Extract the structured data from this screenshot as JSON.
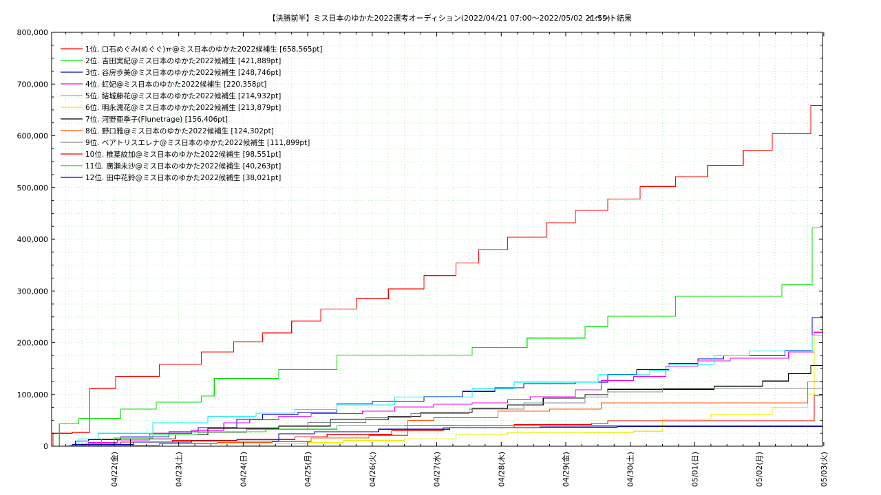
{
  "chart_data": {
    "type": "line",
    "title": "【決勝前半】ミス日本のゆかた2022選考オーディション(2022/04/21 07:00〜2022/05/02 21:59)",
    "subtitle": "イベント結果",
    "xlabel": "",
    "ylabel": "",
    "x_tick_labels": [
      "04/22(金)",
      "04/23(土)",
      "04/24(日)",
      "04/25(月)",
      "04/26(火)",
      "04/27(水)",
      "04/28(木)",
      "04/29(金)",
      "04/30(土)",
      "05/01(日)",
      "05/02(月)",
      "05/03(火)"
    ],
    "x_tick_days": [
      1,
      2,
      3,
      4,
      5,
      6,
      7,
      8,
      9,
      10,
      11,
      12
    ],
    "xlim_days": [
      0.03,
      11.98
    ],
    "ylim": [
      0,
      800000
    ],
    "y_ticks": [
      0,
      100000,
      200000,
      300000,
      400000,
      500000,
      600000,
      700000,
      800000
    ],
    "y_tick_labels": [
      "0",
      "100,000",
      "200,000",
      "300,000",
      "400,000",
      "500,000",
      "600,000",
      "700,000",
      "800,000"
    ],
    "grid": true,
    "legend_position": "top-left",
    "series": [
      {
        "name": "1位. 口石めぐみ(めぐぐ)ㅠ@ミス日本のゆかた2022候補生 [658,565pt]",
        "color": "#ff0000",
        "points": [
          [
            0.03,
            0
          ],
          [
            0.05,
            25000
          ],
          [
            0.35,
            27000
          ],
          [
            0.62,
            112000
          ],
          [
            1.02,
            135000
          ],
          [
            1.7,
            158000
          ],
          [
            2.35,
            182000
          ],
          [
            2.85,
            202000
          ],
          [
            3.3,
            219000
          ],
          [
            3.75,
            242000
          ],
          [
            4.2,
            265000
          ],
          [
            4.75,
            285000
          ],
          [
            5.25,
            304000
          ],
          [
            5.8,
            330000
          ],
          [
            6.3,
            354000
          ],
          [
            6.65,
            380000
          ],
          [
            7.1,
            404000
          ],
          [
            7.7,
            432000
          ],
          [
            8.15,
            456000
          ],
          [
            8.65,
            478000
          ],
          [
            9.15,
            502000
          ],
          [
            9.7,
            521000
          ],
          [
            10.2,
            543000
          ],
          [
            10.75,
            572000
          ],
          [
            11.2,
            604000
          ],
          [
            11.8,
            658565
          ],
          [
            11.98,
            658565
          ]
        ]
      },
      {
        "name": "2位. 吉田実紀@ミス日本のゆかた2022候補生 [421,889pt]",
        "color": "#00dd00",
        "points": [
          [
            0.03,
            0
          ],
          [
            0.15,
            43000
          ],
          [
            0.45,
            54000
          ],
          [
            1.1,
            72000
          ],
          [
            1.65,
            85000
          ],
          [
            2.35,
            97000
          ],
          [
            2.55,
            131000
          ],
          [
            3.55,
            148000
          ],
          [
            4.45,
            176000
          ],
          [
            6.55,
            191000
          ],
          [
            7.4,
            209000
          ],
          [
            8.3,
            231000
          ],
          [
            8.65,
            251000
          ],
          [
            9.7,
            290000
          ],
          [
            11.35,
            312000
          ],
          [
            11.82,
            421889
          ],
          [
            11.98,
            421889
          ]
        ]
      },
      {
        "name": "3位. 谷房歩美@ミス日本のゆかた2022候補生 [248,746pt]",
        "color": "#0000cc",
        "points": [
          [
            0.03,
            0
          ],
          [
            0.4,
            10000
          ],
          [
            0.6,
            13000
          ],
          [
            1.1,
            18000
          ],
          [
            1.85,
            28000
          ],
          [
            2.3,
            36000
          ],
          [
            2.9,
            52000
          ],
          [
            3.3,
            62000
          ],
          [
            3.85,
            66000
          ],
          [
            4.45,
            82000
          ],
          [
            5.0,
            87000
          ],
          [
            5.8,
            96000
          ],
          [
            6.4,
            106000
          ],
          [
            6.9,
            113000
          ],
          [
            7.35,
            121000
          ],
          [
            8.15,
            124000
          ],
          [
            8.65,
            139000
          ],
          [
            9.1,
            148000
          ],
          [
            9.6,
            160000
          ],
          [
            10.05,
            169000
          ],
          [
            10.45,
            175000
          ],
          [
            11.4,
            185000
          ],
          [
            11.82,
            248746
          ],
          [
            11.98,
            248746
          ]
        ]
      },
      {
        "name": "4位. 虹妃@ミス日本のゆかた2022候補生 [220,358pt]",
        "color": "#ee00ee",
        "points": [
          [
            0.03,
            0
          ],
          [
            0.6,
            7000
          ],
          [
            1.05,
            12000
          ],
          [
            1.55,
            25000
          ],
          [
            2.2,
            31000
          ],
          [
            2.7,
            45000
          ],
          [
            3.1,
            51000
          ],
          [
            3.55,
            58000
          ],
          [
            4.05,
            63000
          ],
          [
            4.85,
            68000
          ],
          [
            5.35,
            76000
          ],
          [
            5.95,
            81000
          ],
          [
            6.55,
            84000
          ],
          [
            7.1,
            90000
          ],
          [
            7.45,
            96000
          ],
          [
            8.15,
            109000
          ],
          [
            8.55,
            127000
          ],
          [
            9.05,
            135000
          ],
          [
            9.55,
            155000
          ],
          [
            10.05,
            165000
          ],
          [
            10.55,
            170000
          ],
          [
            11.45,
            182000
          ],
          [
            11.85,
            220358
          ],
          [
            11.98,
            220358
          ]
        ]
      },
      {
        "name": "5位. 結城藤花@ミス日本のゆかた2022候補生 [214,932pt]",
        "color": "#00eeee",
        "points": [
          [
            0.03,
            0
          ],
          [
            0.45,
            14000
          ],
          [
            0.75,
            25000
          ],
          [
            1.6,
            45000
          ],
          [
            2.45,
            58000
          ],
          [
            3.2,
            64000
          ],
          [
            3.8,
            71000
          ],
          [
            4.45,
            80000
          ],
          [
            5.35,
            95000
          ],
          [
            6.55,
            111000
          ],
          [
            7.2,
            124000
          ],
          [
            8.5,
            138000
          ],
          [
            9.3,
            147000
          ],
          [
            9.6,
            158000
          ],
          [
            10.3,
            175000
          ],
          [
            10.85,
            184000
          ],
          [
            11.82,
            214932
          ],
          [
            11.98,
            214932
          ]
        ]
      },
      {
        "name": "6位. 明永濡花@ミス日本のゆかた2022候補生 [213,879pt]",
        "color": "#eeee00",
        "points": [
          [
            0.03,
            0
          ],
          [
            3.0,
            2000
          ],
          [
            3.5,
            5000
          ],
          [
            4.0,
            7000
          ],
          [
            4.55,
            11000
          ],
          [
            5.5,
            14000
          ],
          [
            6.3,
            22000
          ],
          [
            7.1,
            26000
          ],
          [
            8.3,
            27000
          ],
          [
            9.05,
            29000
          ],
          [
            9.5,
            52000
          ],
          [
            10.25,
            62000
          ],
          [
            11.2,
            75000
          ],
          [
            11.75,
            100000
          ],
          [
            11.85,
            213879
          ],
          [
            11.98,
            213879
          ]
        ]
      },
      {
        "name": "7位. 河野亜季子(Flunetrage) [156,406pt]",
        "color": "#000000",
        "points": [
          [
            0.03,
            0
          ],
          [
            0.55,
            3000
          ],
          [
            1.25,
            14000
          ],
          [
            1.95,
            22000
          ],
          [
            2.45,
            35000
          ],
          [
            3.55,
            39000
          ],
          [
            4.35,
            52000
          ],
          [
            5.25,
            58000
          ],
          [
            5.75,
            65000
          ],
          [
            6.55,
            73000
          ],
          [
            7.1,
            80000
          ],
          [
            7.65,
            93000
          ],
          [
            8.3,
            100000
          ],
          [
            8.65,
            110000
          ],
          [
            10.3,
            116000
          ],
          [
            11.05,
            126000
          ],
          [
            11.45,
            140000
          ],
          [
            11.8,
            156406
          ],
          [
            11.98,
            156406
          ]
        ]
      },
      {
        "name": "8位. 野口雅@ミス日本のゆかた2022候補生 [124,302pt]",
        "color": "#ff5500",
        "points": [
          [
            0.03,
            0
          ],
          [
            0.9,
            2000
          ],
          [
            1.7,
            5000
          ],
          [
            2.6,
            7000
          ],
          [
            3.45,
            9000
          ],
          [
            4.05,
            16000
          ],
          [
            4.95,
            21000
          ],
          [
            5.55,
            50000
          ],
          [
            5.95,
            55000
          ],
          [
            6.95,
            68000
          ],
          [
            7.75,
            72000
          ],
          [
            8.55,
            84000
          ],
          [
            11.75,
            124302
          ],
          [
            11.98,
            124302
          ]
        ]
      },
      {
        "name": "9位. ベアトリスエレナ@ミス日本のゆかた2022候補生 [111,899pt]",
        "color": "#888888",
        "points": [
          [
            0.03,
            0
          ],
          [
            0.8,
            14000
          ],
          [
            1.55,
            22000
          ],
          [
            2.3,
            27000
          ],
          [
            3.05,
            33000
          ],
          [
            4.0,
            46000
          ],
          [
            4.9,
            55000
          ],
          [
            5.6,
            63000
          ],
          [
            6.5,
            72000
          ],
          [
            7.35,
            84000
          ],
          [
            8.3,
            95000
          ],
          [
            8.65,
            105000
          ],
          [
            9.5,
            111899
          ],
          [
            11.98,
            111899
          ]
        ]
      },
      {
        "name": "10位. 椎葉紋加@ミス日本のゆかた2022候補生 [98,551pt]",
        "color": "#ee0000",
        "points": [
          [
            0.03,
            0
          ],
          [
            0.5,
            4000
          ],
          [
            1.1,
            8000
          ],
          [
            1.9,
            11000
          ],
          [
            2.9,
            13000
          ],
          [
            3.8,
            18000
          ],
          [
            4.3,
            23000
          ],
          [
            5.3,
            30000
          ],
          [
            6.1,
            36000
          ],
          [
            7.2,
            42000
          ],
          [
            8.4,
            44000
          ],
          [
            8.65,
            49000
          ],
          [
            10.5,
            49000
          ],
          [
            11.85,
            98551
          ],
          [
            11.98,
            98551
          ]
        ]
      },
      {
        "name": "11位. 廣瀬未沙@ミス日本のゆかた2022候補生 [40,263pt]",
        "color": "#22cc22",
        "points": [
          [
            0.03,
            0
          ],
          [
            0.3,
            2000
          ],
          [
            1.0,
            16000
          ],
          [
            1.6,
            22000
          ],
          [
            2.3,
            28000
          ],
          [
            3.35,
            33000
          ],
          [
            4.45,
            40000
          ],
          [
            5.5,
            40263
          ],
          [
            11.98,
            40263
          ]
        ]
      },
      {
        "name": "12位. 田中花鈴@ミス日本のゆかた2022候補生 [38,021pt]",
        "color": "#0000aa",
        "points": [
          [
            0.03,
            0
          ],
          [
            0.35,
            3000
          ],
          [
            1.3,
            8000
          ],
          [
            2.2,
            10000
          ],
          [
            3.55,
            24000
          ],
          [
            4.1,
            28000
          ],
          [
            5.1,
            33000
          ],
          [
            6.2,
            36000
          ],
          [
            7.6,
            37000
          ],
          [
            8.8,
            38021
          ],
          [
            11.98,
            38021
          ]
        ]
      }
    ]
  }
}
